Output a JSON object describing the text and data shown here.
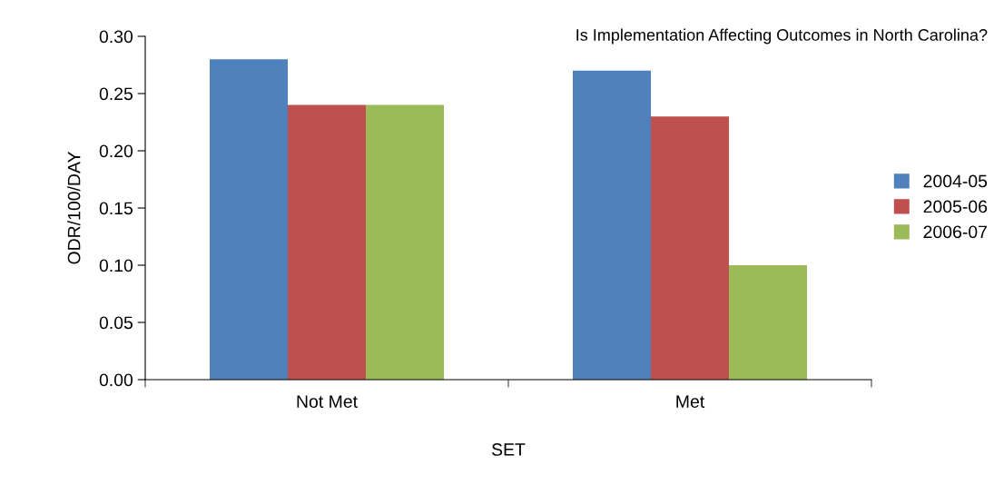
{
  "chart_data": {
    "type": "bar",
    "title": "Is Implementation Affecting Outcomes in North Carolina?",
    "xlabel": "SET",
    "ylabel": "ODR/100/DAY",
    "categories": [
      "Not Met",
      "Met"
    ],
    "series": [
      {
        "name": "2004-05",
        "color": "#4f81bd",
        "values": [
          0.28,
          0.27
        ]
      },
      {
        "name": "2005-06",
        "color": "#c0504d",
        "values": [
          0.24,
          0.23
        ]
      },
      {
        "name": "2006-07",
        "color": "#9bbb59",
        "values": [
          0.24,
          0.1
        ]
      }
    ],
    "ylim": [
      0,
      0.3
    ],
    "yticks": [
      {
        "value": 0,
        "label": "0.00"
      },
      {
        "value": 0.05,
        "label": "0.05"
      },
      {
        "value": 0.1,
        "label": "0.10"
      },
      {
        "value": 0.15,
        "label": "0.15"
      },
      {
        "value": 0.2,
        "label": "0.20"
      },
      {
        "value": 0.25,
        "label": "0.25"
      },
      {
        "value": 0.3,
        "label": "0.30"
      }
    ],
    "grid": false,
    "legend": "right"
  }
}
